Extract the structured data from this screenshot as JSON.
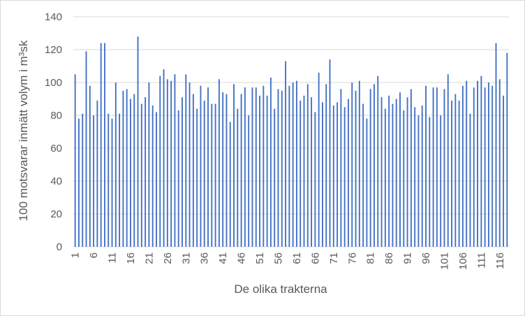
{
  "chart_data": {
    "type": "bar",
    "title": "",
    "xlabel": "De olika trakterna",
    "ylabel": "100 motsvarar  inmätt volym i m³sk",
    "ylim": [
      0,
      140
    ],
    "yticks": [
      0,
      20,
      40,
      60,
      80,
      100,
      120,
      140
    ],
    "x_tick_labels": [
      "1",
      "6",
      "11",
      "16",
      "21",
      "26",
      "31",
      "36",
      "41",
      "46",
      "51",
      "56",
      "61",
      "66",
      "71",
      "76",
      "81",
      "86",
      "91",
      "96",
      "101",
      "106",
      "111",
      "116"
    ],
    "x_tick_every": 5,
    "grid": true,
    "legend": "none",
    "bar_color": "#4472c4",
    "categories": [
      1,
      2,
      3,
      4,
      5,
      6,
      7,
      8,
      9,
      10,
      11,
      12,
      13,
      14,
      15,
      16,
      17,
      18,
      19,
      20,
      21,
      22,
      23,
      24,
      25,
      26,
      27,
      28,
      29,
      30,
      31,
      32,
      33,
      34,
      35,
      36,
      37,
      38,
      39,
      40,
      41,
      42,
      43,
      44,
      45,
      46,
      47,
      48,
      49,
      50,
      51,
      52,
      53,
      54,
      55,
      56,
      57,
      58,
      59,
      60,
      61,
      62,
      63,
      64,
      65,
      66,
      67,
      68,
      69,
      70,
      71,
      72,
      73,
      74,
      75,
      76,
      77,
      78,
      79,
      80,
      81,
      82,
      83,
      84,
      85,
      86,
      87,
      88,
      89,
      90,
      91,
      92,
      93,
      94,
      95,
      96,
      97,
      98,
      99,
      100,
      101,
      102,
      103,
      104,
      105,
      106,
      107,
      108,
      109,
      110,
      111,
      112,
      113,
      114,
      115,
      116,
      117,
      118
    ],
    "values": [
      105,
      78,
      81,
      119,
      98,
      80,
      89,
      124,
      124,
      81,
      78,
      100,
      81,
      95,
      96,
      90,
      93,
      128,
      87,
      91,
      100,
      86,
      82,
      104,
      108,
      102,
      101,
      105,
      83,
      91,
      105,
      100,
      93,
      84,
      98,
      89,
      97,
      87,
      87,
      102,
      94,
      93,
      76,
      99,
      84,
      93,
      97,
      80,
      97,
      97,
      92,
      98,
      92,
      103,
      84,
      96,
      95,
      113,
      98,
      100,
      101,
      89,
      92,
      99,
      91,
      82,
      106,
      88,
      99,
      114,
      86,
      88,
      96,
      85,
      90,
      100,
      95,
      101,
      87,
      78,
      96,
      99,
      104,
      91,
      84,
      92,
      87,
      90,
      94,
      83,
      91,
      96,
      85,
      80,
      86,
      98,
      79,
      97,
      97,
      80,
      96,
      105,
      89,
      93,
      89,
      98,
      101,
      81,
      97,
      101,
      104,
      97,
      100,
      98,
      124,
      102,
      92,
      118
    ]
  }
}
